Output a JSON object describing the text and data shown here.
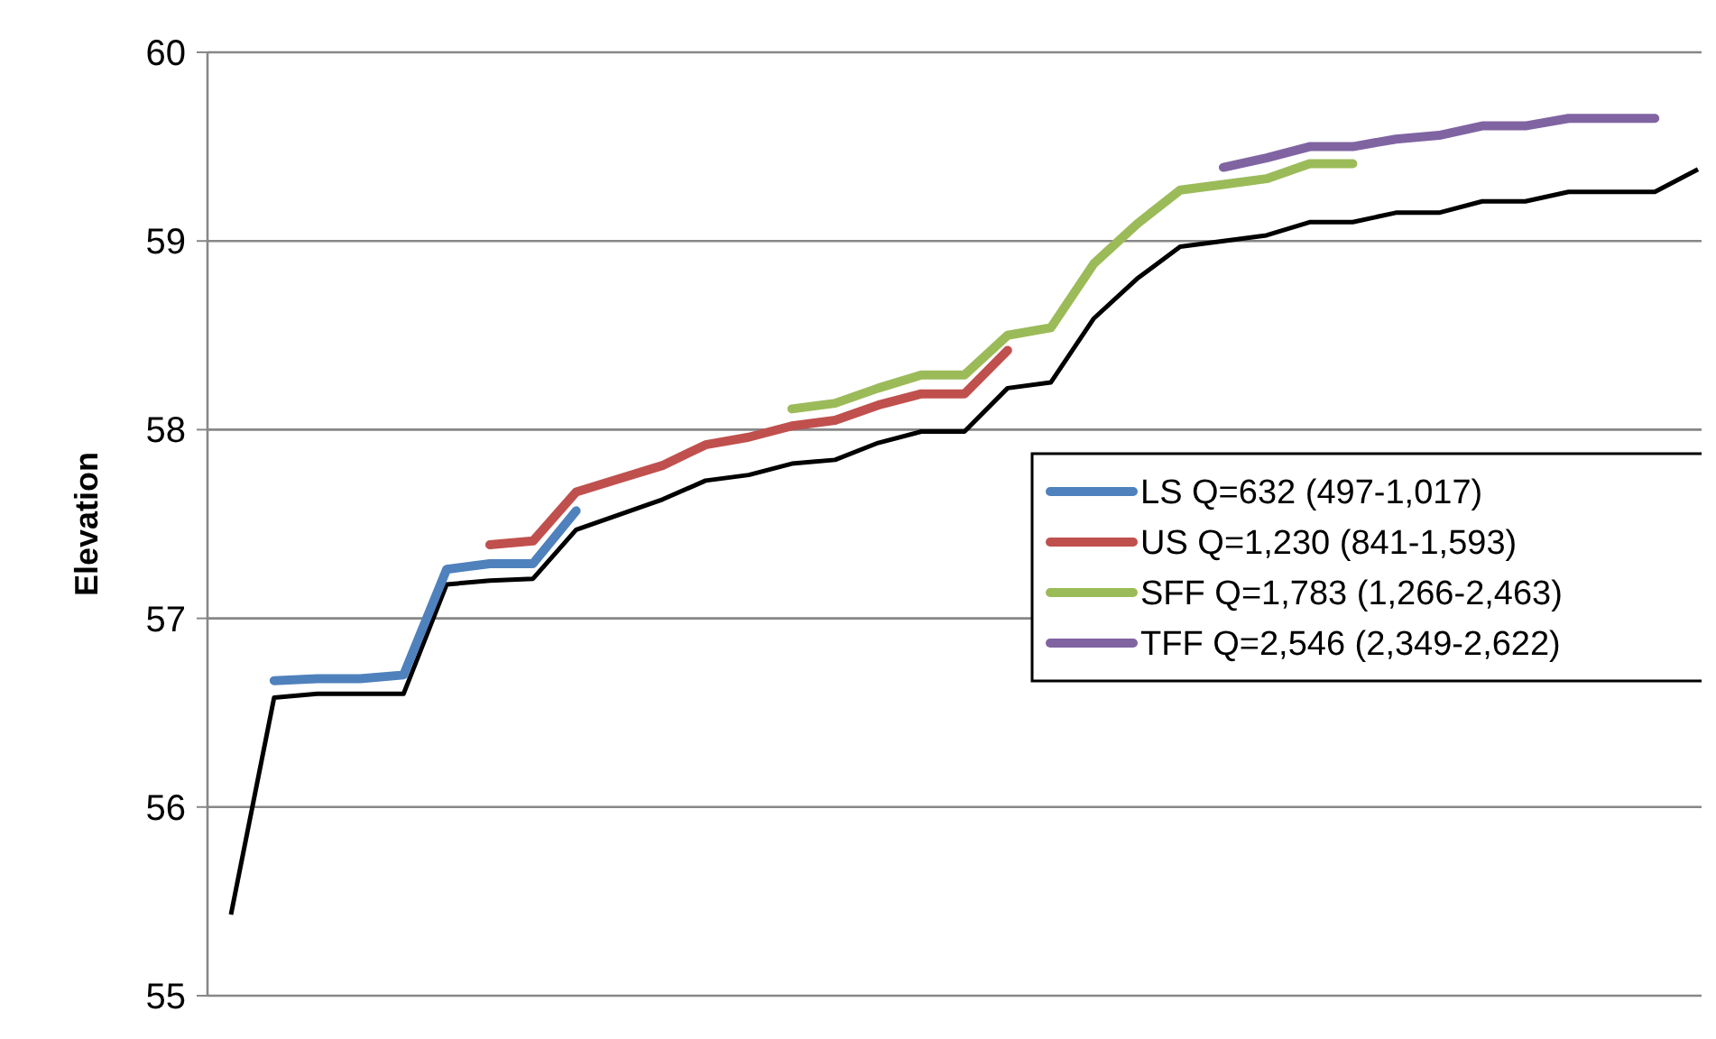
{
  "chart_data": {
    "type": "line",
    "ylabel": "Elevation",
    "categories": [
      null,
      null,
      null,
      null,
      null,
      null,
      null,
      null,
      null,
      null,
      null,
      null,
      null,
      null,
      null,
      null,
      null,
      null,
      null,
      null,
      null,
      null,
      null,
      null,
      null,
      null,
      null,
      null,
      null,
      null,
      null,
      null,
      null,
      null,
      null
    ],
    "ylim": [
      55,
      60
    ],
    "yticks": [
      55,
      56,
      57,
      58,
      59,
      60
    ],
    "grid": "y",
    "legend": "right",
    "tick_labels": "y",
    "series": [
      {
        "color": "#000000",
        "values": [
          55.43,
          56.58,
          56.6,
          56.6,
          56.6,
          57.18,
          57.2,
          57.21,
          57.47,
          57.55,
          57.63,
          57.73,
          57.76,
          57.82,
          57.84,
          57.93,
          57.99,
          57.99,
          58.22,
          58.25,
          58.59,
          58.8,
          58.97,
          59.0,
          59.03,
          59.1,
          59.1,
          59.15,
          59.15,
          59.21,
          59.21,
          59.26,
          59.26,
          59.26,
          59.38
        ]
      },
      {
        "name": "LS Q=632 (497-1,017)",
        "color": "#4f81bd",
        "values": [
          null,
          56.67,
          56.68,
          56.68,
          56.7,
          57.26,
          57.29,
          57.29,
          57.57,
          null,
          null,
          null,
          null,
          null,
          null,
          null,
          null,
          null,
          null,
          null,
          null,
          null,
          null,
          null,
          null,
          null,
          null,
          null,
          null,
          null,
          null,
          null,
          null,
          null,
          null
        ]
      },
      {
        "name": "US Q=1,230 (841-1,593)",
        "color": "#c0504d",
        "values": [
          null,
          null,
          null,
          null,
          null,
          null,
          57.39,
          57.41,
          57.67,
          57.74,
          57.81,
          57.92,
          57.96,
          58.02,
          58.05,
          58.13,
          58.19,
          58.19,
          58.42,
          null,
          null,
          null,
          null,
          null,
          null,
          null,
          null,
          null,
          null,
          null,
          null,
          null,
          null,
          null,
          null
        ]
      },
      {
        "name": "SFF Q=1,783 (1,266-2,463)",
        "color": "#9bbb59",
        "values": [
          null,
          null,
          null,
          null,
          null,
          null,
          null,
          null,
          null,
          null,
          null,
          null,
          null,
          58.11,
          58.14,
          58.22,
          58.29,
          58.29,
          58.5,
          58.54,
          58.88,
          59.09,
          59.27,
          59.3,
          59.33,
          59.41,
          59.41,
          null,
          null,
          null,
          null,
          null,
          null,
          null,
          null
        ]
      },
      {
        "name": "TFF Q=2,546 (2,349-2,622)",
        "color": "#8064a2",
        "values": [
          null,
          null,
          null,
          null,
          null,
          null,
          null,
          null,
          null,
          null,
          null,
          null,
          null,
          null,
          null,
          null,
          null,
          null,
          null,
          null,
          null,
          null,
          null,
          59.39,
          59.44,
          59.5,
          59.5,
          59.54,
          59.56,
          59.61,
          59.61,
          59.65,
          59.65,
          59.65,
          null
        ]
      }
    ]
  }
}
